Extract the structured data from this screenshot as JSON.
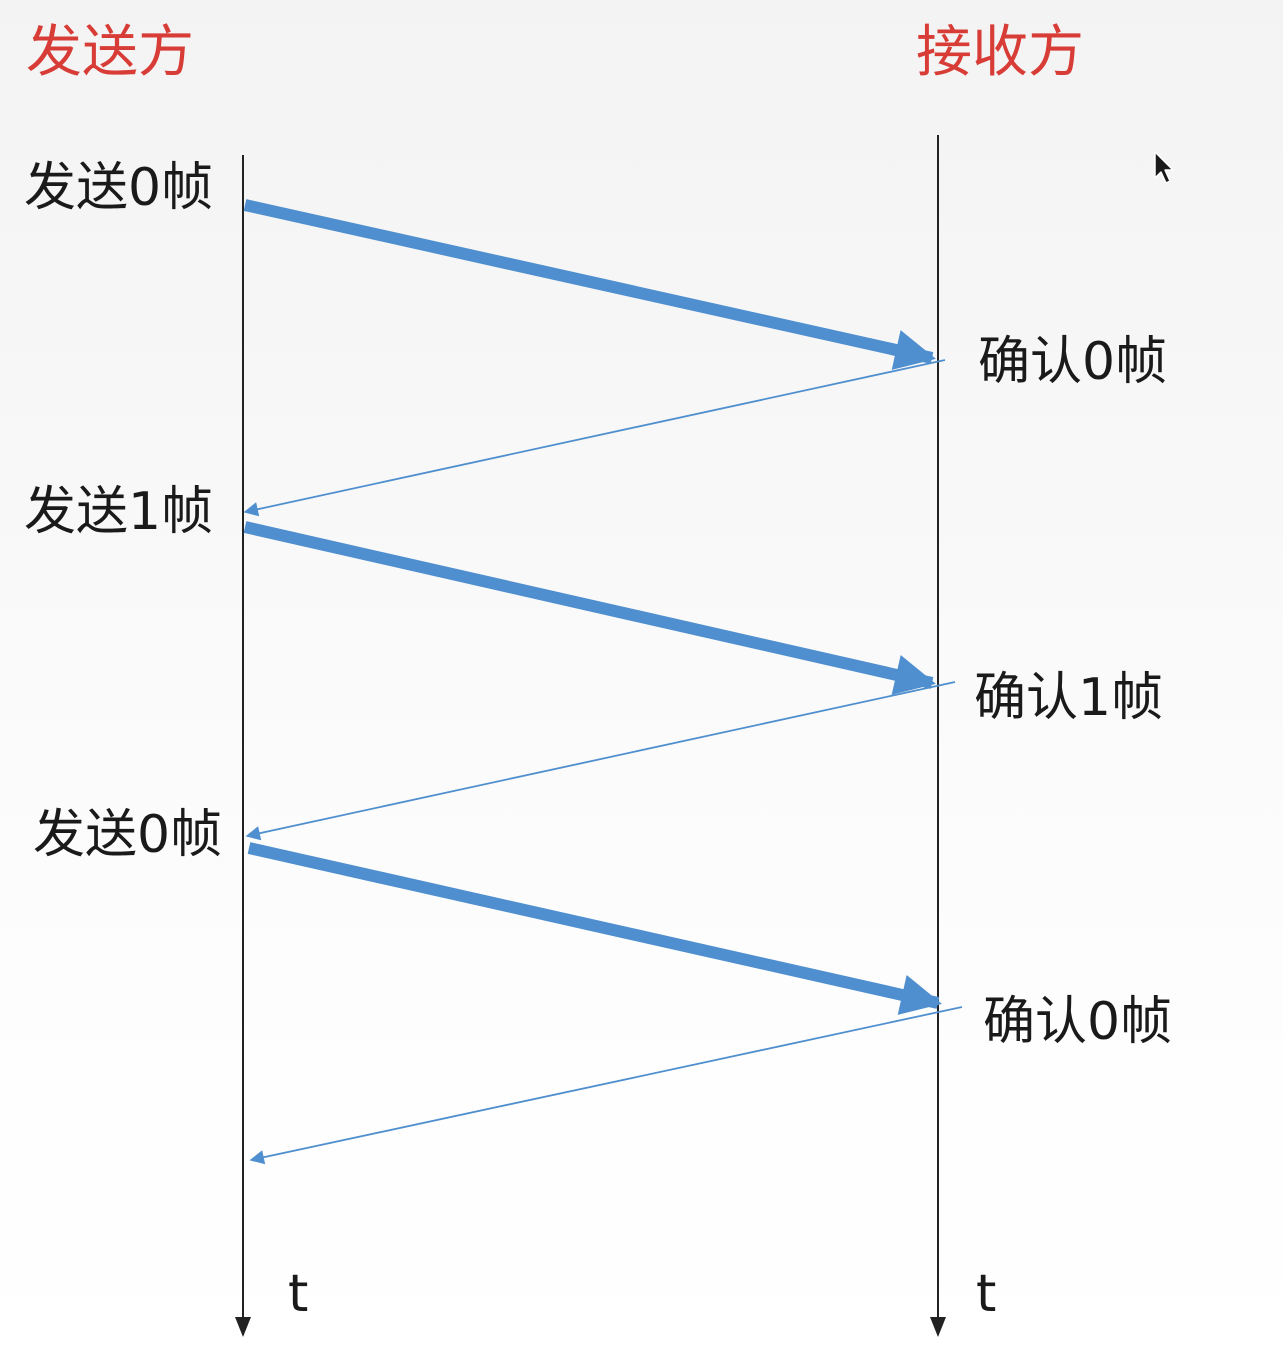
{
  "sender": {
    "title": "发送方",
    "time_label": "t"
  },
  "receiver": {
    "title": "接收方",
    "time_label": "t"
  },
  "events": [
    {
      "send_label": "发送0帧",
      "ack_label": "确认0帧"
    },
    {
      "send_label": "发送1帧",
      "ack_label": "确认1帧"
    },
    {
      "send_label": "发送0帧",
      "ack_label": "确认0帧"
    }
  ],
  "colors": {
    "title": "#d83c36",
    "arrow": "#4f8fcf",
    "axis": "#222222",
    "text": "#1a1a1a"
  }
}
